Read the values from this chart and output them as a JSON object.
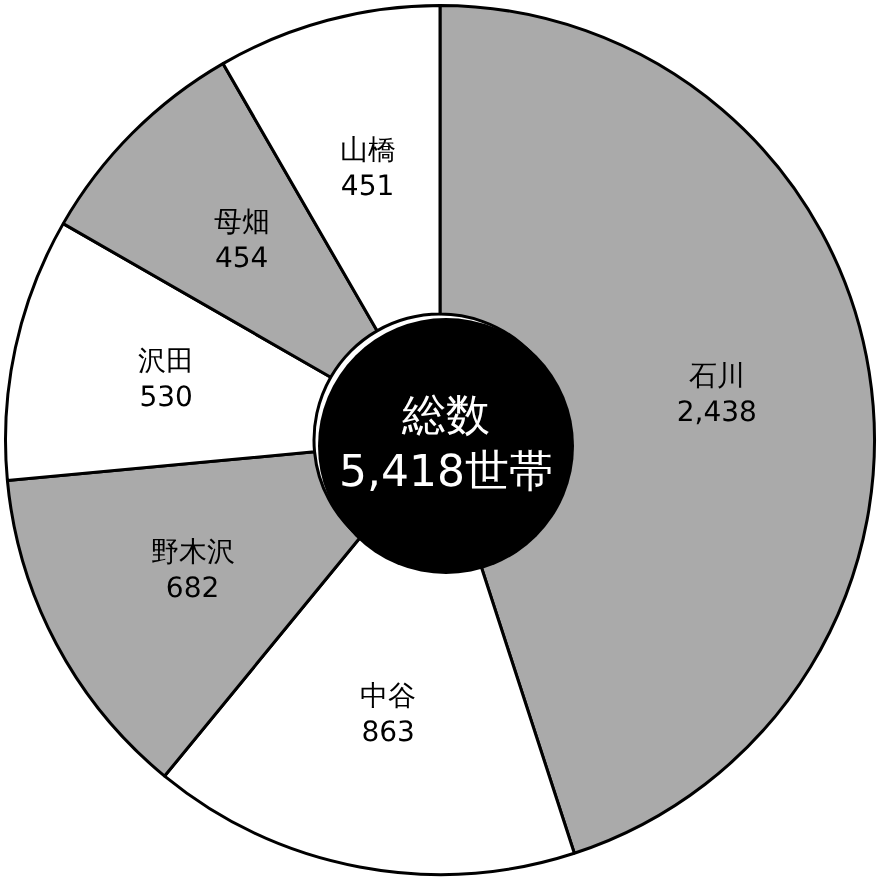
{
  "chart_data": {
    "type": "donut",
    "categories": [
      "石川",
      "中谷",
      "野木沢",
      "沢田",
      "母畑",
      "山橋"
    ],
    "values": [
      2438,
      863,
      682,
      530,
      454,
      451
    ],
    "colors": [
      "#aaaaaa",
      "#ffffff",
      "#aaaaaa",
      "#ffffff",
      "#aaaaaa",
      "#ffffff"
    ],
    "value_labels": [
      "2,438",
      "863",
      "682",
      "530",
      "454",
      "451"
    ],
    "annotations": [
      "総数",
      "5,418世帯"
    ],
    "legend": false
  }
}
